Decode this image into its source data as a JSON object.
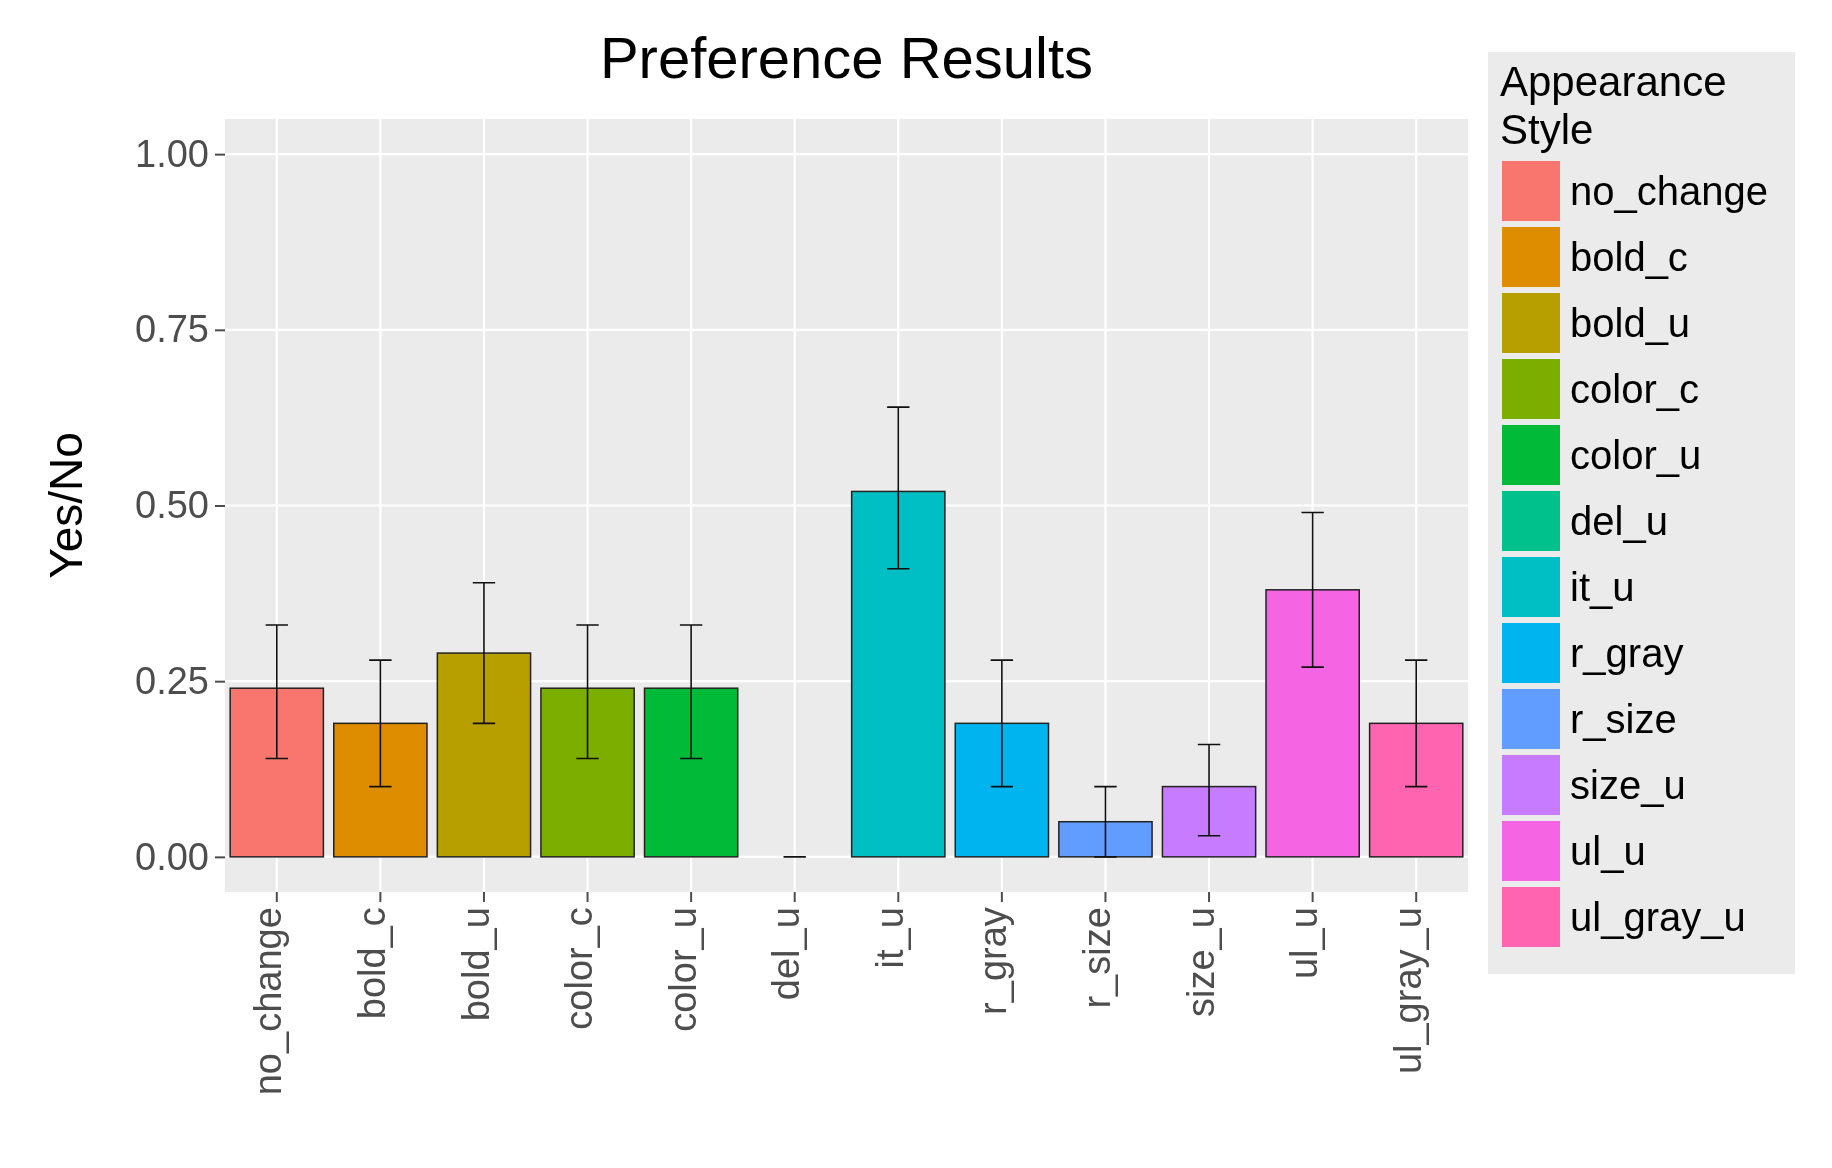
{
  "chart_data": {
    "type": "bar",
    "title": "Preference Results",
    "ylabel": "Yes/No",
    "legend_title": "Appearance Style",
    "categories": [
      "no_change",
      "bold_c",
      "bold_u",
      "color_c",
      "color_u",
      "del_u",
      "it_u",
      "r_gray",
      "r_size",
      "size_u",
      "ul_u",
      "ul_gray_u"
    ],
    "series": [
      {
        "name": "no_change",
        "color": "#f8766d",
        "values": [
          0.24,
          null,
          null,
          null,
          null,
          null,
          null,
          null,
          null,
          null,
          null,
          null
        ],
        "errors": [
          [
            0.14,
            0.33
          ],
          null,
          null,
          null,
          null,
          null,
          null,
          null,
          null,
          null,
          null,
          null
        ]
      },
      {
        "name": "bold_c",
        "color": "#de8c00",
        "values": [
          null,
          0.19,
          null,
          null,
          null,
          null,
          null,
          null,
          null,
          null,
          null,
          null
        ],
        "errors": [
          null,
          [
            0.1,
            0.28
          ],
          null,
          null,
          null,
          null,
          null,
          null,
          null,
          null,
          null,
          null
        ]
      },
      {
        "name": "bold_u",
        "color": "#b79f00",
        "values": [
          null,
          null,
          0.29,
          null,
          null,
          null,
          null,
          null,
          null,
          null,
          null,
          null
        ],
        "errors": [
          null,
          null,
          [
            0.19,
            0.39
          ],
          null,
          null,
          null,
          null,
          null,
          null,
          null,
          null,
          null
        ]
      },
      {
        "name": "color_c",
        "color": "#7cae00",
        "values": [
          null,
          null,
          null,
          0.24,
          null,
          null,
          null,
          null,
          null,
          null,
          null,
          null
        ],
        "errors": [
          null,
          null,
          null,
          [
            0.14,
            0.33
          ],
          null,
          null,
          null,
          null,
          null,
          null,
          null,
          null
        ]
      },
      {
        "name": "color_u",
        "color": "#00ba38",
        "values": [
          null,
          null,
          null,
          null,
          0.24,
          null,
          null,
          null,
          null,
          null,
          null,
          null
        ],
        "errors": [
          null,
          null,
          null,
          null,
          [
            0.14,
            0.33
          ],
          null,
          null,
          null,
          null,
          null,
          null,
          null
        ]
      },
      {
        "name": "del_u",
        "color": "#00c08b",
        "values": [
          null,
          null,
          null,
          null,
          null,
          0,
          null,
          null,
          null,
          null,
          null,
          null
        ],
        "errors": [
          null,
          null,
          null,
          null,
          null,
          [
            0,
            0
          ],
          null,
          null,
          null,
          null,
          null,
          null
        ]
      },
      {
        "name": "it_u",
        "color": "#00bfc4",
        "values": [
          null,
          null,
          null,
          null,
          null,
          null,
          0.52,
          null,
          null,
          null,
          null,
          null
        ],
        "errors": [
          null,
          null,
          null,
          null,
          null,
          null,
          [
            0.41,
            0.64
          ],
          null,
          null,
          null,
          null,
          null
        ]
      },
      {
        "name": "r_gray",
        "color": "#00b4f0",
        "values": [
          null,
          null,
          null,
          null,
          null,
          null,
          null,
          0.19,
          null,
          null,
          null,
          null
        ],
        "errors": [
          null,
          null,
          null,
          null,
          null,
          null,
          null,
          [
            0.1,
            0.28
          ],
          null,
          null,
          null,
          null
        ]
      },
      {
        "name": "r_size",
        "color": "#619cff",
        "values": [
          null,
          null,
          null,
          null,
          null,
          null,
          null,
          null,
          0.05,
          null,
          null,
          null
        ],
        "errors": [
          null,
          null,
          null,
          null,
          null,
          null,
          null,
          null,
          [
            0,
            0.1
          ],
          null,
          null,
          null
        ]
      },
      {
        "name": "size_u",
        "color": "#c77cff",
        "values": [
          null,
          null,
          null,
          null,
          null,
          null,
          null,
          null,
          null,
          0.1,
          null,
          null
        ],
        "errors": [
          null,
          null,
          null,
          null,
          null,
          null,
          null,
          null,
          null,
          [
            0.03,
            0.16
          ],
          null,
          null
        ]
      },
      {
        "name": "ul_u",
        "color": "#f564e3",
        "values": [
          null,
          null,
          null,
          null,
          null,
          null,
          null,
          null,
          null,
          null,
          0.38,
          null
        ],
        "errors": [
          null,
          null,
          null,
          null,
          null,
          null,
          null,
          null,
          null,
          null,
          [
            0.27,
            0.49
          ],
          null
        ]
      },
      {
        "name": "ul_gray_u",
        "color": "#ff64b0",
        "values": [
          null,
          null,
          null,
          null,
          null,
          null,
          null,
          null,
          null,
          null,
          null,
          0.19
        ],
        "errors": [
          null,
          null,
          null,
          null,
          null,
          null,
          null,
          null,
          null,
          null,
          null,
          [
            0.1,
            0.28
          ]
        ]
      }
    ],
    "ylim": [
      -0.05,
      1.05
    ],
    "yticks": [
      {
        "value": 0,
        "label": "0.00"
      },
      {
        "value": 0.25,
        "label": "0.25"
      },
      {
        "value": 0.5,
        "label": "0.50"
      },
      {
        "value": 0.75,
        "label": "0.75"
      },
      {
        "value": 1,
        "label": "1.00"
      }
    ],
    "grid": true,
    "legend": "right"
  }
}
